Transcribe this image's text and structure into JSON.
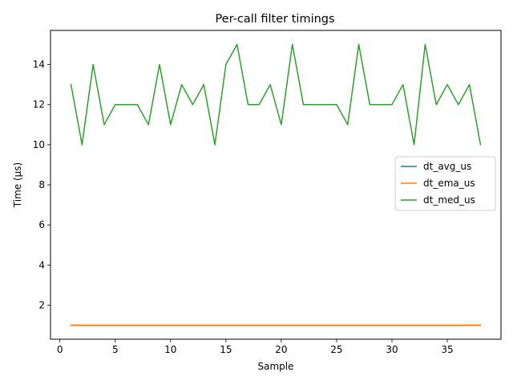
{
  "chart_data": {
    "type": "line",
    "title": "Per-call filter timings",
    "xlabel": "Sample",
    "ylabel": "Time (µs)",
    "xlim": [
      -0.85,
      39.85
    ],
    "ylim": [
      0.3,
      15.7
    ],
    "xticks": [
      0,
      5,
      10,
      15,
      20,
      25,
      30,
      35
    ],
    "yticks": [
      2,
      4,
      6,
      8,
      10,
      12,
      14
    ],
    "grid": false,
    "legend_position": "center-right",
    "x": [
      1,
      2,
      3,
      4,
      5,
      6,
      7,
      8,
      9,
      10,
      11,
      12,
      13,
      14,
      15,
      16,
      17,
      18,
      19,
      20,
      21,
      22,
      23,
      24,
      25,
      26,
      27,
      28,
      29,
      30,
      31,
      32,
      33,
      34,
      35,
      36,
      37,
      38
    ],
    "series": [
      {
        "name": "dt_avg_us",
        "color": "#1f77b4",
        "values": [
          1,
          1,
          1,
          1,
          1,
          1,
          1,
          1,
          1,
          1,
          1,
          1,
          1,
          1,
          1,
          1,
          1,
          1,
          1,
          1,
          1,
          1,
          1,
          1,
          1,
          1,
          1,
          1,
          1,
          1,
          1,
          1,
          1,
          1,
          1,
          1,
          1,
          1
        ]
      },
      {
        "name": "dt_ema_us",
        "color": "#ff7f0e",
        "values": [
          1,
          1,
          1,
          1,
          1,
          1,
          1,
          1,
          1,
          1,
          1,
          1,
          1,
          1,
          1,
          1,
          1,
          1,
          1,
          1,
          1,
          1,
          1,
          1,
          1,
          1,
          1,
          1,
          1,
          1,
          1,
          1,
          1,
          1,
          1,
          1,
          1,
          1
        ]
      },
      {
        "name": "dt_med_us",
        "color": "#2ca02c",
        "values": [
          13,
          10,
          14,
          11,
          12,
          12,
          12,
          11,
          14,
          11,
          13,
          12,
          13,
          10,
          14,
          15,
          12,
          12,
          13,
          11,
          15,
          12,
          12,
          12,
          12,
          11,
          15,
          12,
          12,
          12,
          13,
          10,
          15,
          12,
          13,
          12,
          13,
          10
        ]
      }
    ]
  }
}
